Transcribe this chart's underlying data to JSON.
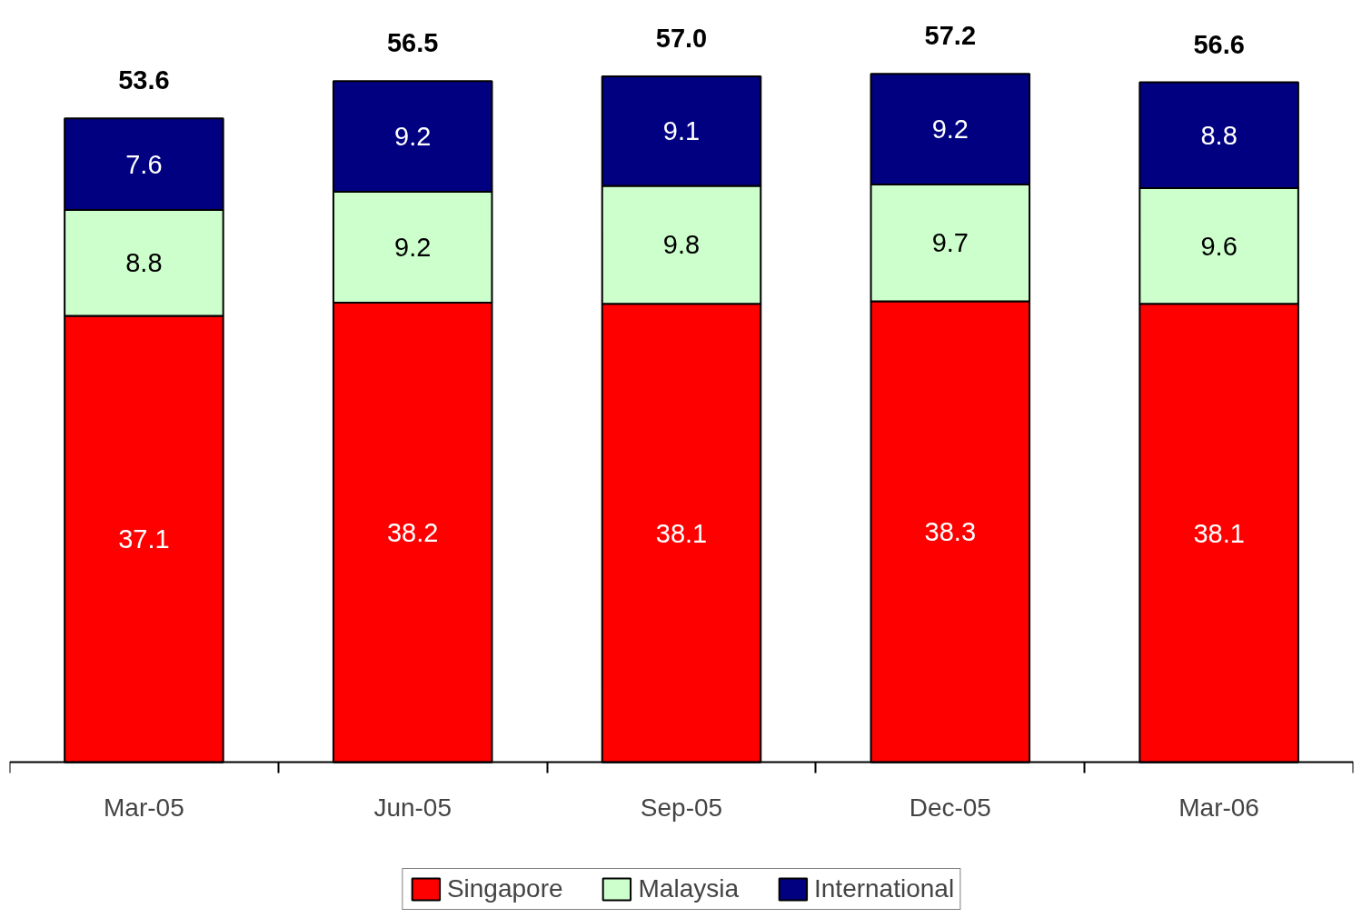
{
  "chart_data": {
    "type": "bar",
    "stacked": true,
    "categories": [
      "Mar-05",
      "Jun-05",
      "Sep-05",
      "Dec-05",
      "Mar-06"
    ],
    "series": [
      {
        "name": "Singapore",
        "color": "#ff0000",
        "values": [
          37.1,
          38.2,
          38.1,
          38.3,
          38.1
        ]
      },
      {
        "name": "Malaysia",
        "color": "#ccffcc",
        "values": [
          8.8,
          9.2,
          9.8,
          9.7,
          9.6
        ]
      },
      {
        "name": "International",
        "color": "#000080",
        "values": [
          7.6,
          9.2,
          9.1,
          9.2,
          8.8
        ]
      }
    ],
    "data_labels": true,
    "totals": [
      "53.6",
      "56.5",
      "57.0",
      "57.2",
      "56.6"
    ],
    "legend": "bottom",
    "grid": false
  }
}
